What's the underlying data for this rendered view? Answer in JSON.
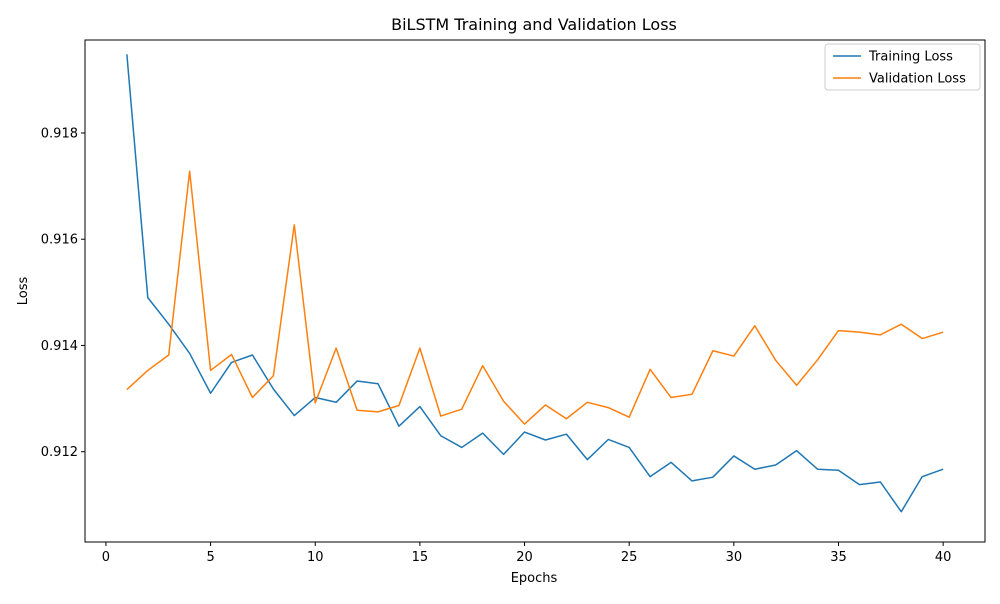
{
  "chart_data": {
    "type": "line",
    "title": "BiLSTM Training and Validation Loss",
    "xlabel": "Epochs",
    "ylabel": "Loss",
    "xlim": [
      -1,
      42
    ],
    "ylim": [
      0.9103,
      0.91975
    ],
    "x_ticks": [
      0,
      5,
      10,
      15,
      20,
      25,
      30,
      35,
      40
    ],
    "y_ticks": [
      0.912,
      0.914,
      0.916,
      0.918
    ],
    "y_tick_labels": [
      "0.912",
      "0.914",
      "0.916",
      "0.918"
    ],
    "grid": false,
    "legend_position": "top-right",
    "x": [
      1,
      2,
      3,
      4,
      5,
      6,
      7,
      8,
      9,
      10,
      11,
      12,
      13,
      14,
      15,
      16,
      17,
      18,
      19,
      20,
      21,
      22,
      23,
      24,
      25,
      26,
      27,
      28,
      29,
      30,
      31,
      32,
      33,
      34,
      35,
      36,
      37,
      38,
      39,
      40
    ],
    "series": [
      {
        "name": "Training Loss",
        "color": "#1f77b4",
        "values": [
          0.91948,
          0.9149,
          0.9144,
          0.91385,
          0.9131,
          0.91368,
          0.91382,
          0.91318,
          0.91268,
          0.91302,
          0.91293,
          0.91333,
          0.91328,
          0.91248,
          0.91285,
          0.9123,
          0.91208,
          0.91235,
          0.91195,
          0.91237,
          0.91222,
          0.91233,
          0.91185,
          0.91223,
          0.91208,
          0.91153,
          0.9118,
          0.91145,
          0.91152,
          0.91192,
          0.91167,
          0.91175,
          0.91202,
          0.91167,
          0.91165,
          0.91138,
          0.91143,
          0.91087,
          0.91153,
          0.91167
        ]
      },
      {
        "name": "Validation Loss",
        "color": "#ff7f0e",
        "values": [
          0.91317,
          0.91353,
          0.91382,
          0.91728,
          0.91353,
          0.91383,
          0.91302,
          0.91343,
          0.91627,
          0.91292,
          0.91395,
          0.91278,
          0.91275,
          0.91287,
          0.91395,
          0.91267,
          0.9128,
          0.91362,
          0.91295,
          0.91252,
          0.91288,
          0.91262,
          0.91293,
          0.91283,
          0.91265,
          0.91355,
          0.91302,
          0.91308,
          0.9139,
          0.9138,
          0.91437,
          0.91372,
          0.91325,
          0.91373,
          0.91428,
          0.91425,
          0.9142,
          0.9144,
          0.91413,
          0.91425
        ]
      }
    ]
  }
}
